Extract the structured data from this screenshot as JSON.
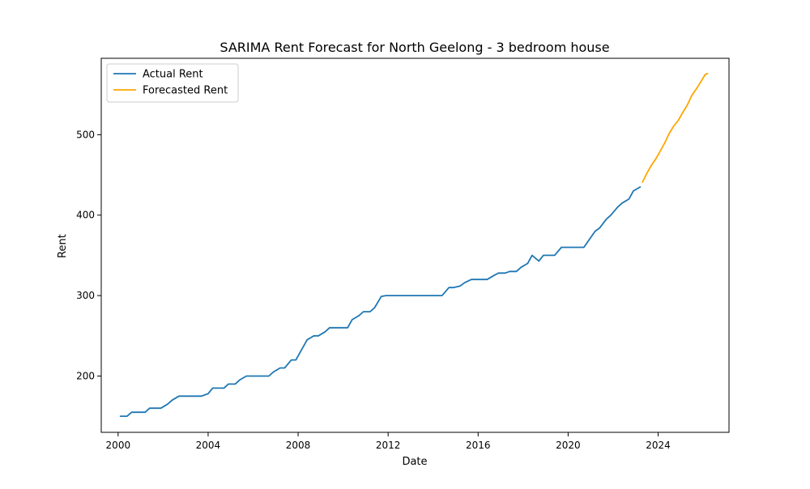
{
  "chart_data": {
    "type": "line",
    "title": "SARIMA Rent Forecast for North Geelong - 3 bedroom house",
    "xlabel": "Date",
    "ylabel": "Rent",
    "xlim": [
      1999.25,
      2027.15
    ],
    "ylim": [
      130,
      595
    ],
    "xticks": [
      2000,
      2004,
      2008,
      2012,
      2016,
      2020,
      2024
    ],
    "yticks": [
      200,
      300,
      400,
      500
    ],
    "grid": false,
    "legend_position": "top-left",
    "series": [
      {
        "name": "Actual Rent",
        "color": "#1f77b4",
        "points": [
          [
            2000.1,
            150
          ],
          [
            2000.4,
            150
          ],
          [
            2000.6,
            155
          ],
          [
            2000.9,
            155
          ],
          [
            2001.2,
            155
          ],
          [
            2001.4,
            160
          ],
          [
            2001.7,
            160
          ],
          [
            2001.9,
            160
          ],
          [
            2002.2,
            165
          ],
          [
            2002.4,
            170
          ],
          [
            2002.7,
            175
          ],
          [
            2002.9,
            175
          ],
          [
            2003.2,
            175
          ],
          [
            2003.4,
            175
          ],
          [
            2003.7,
            175
          ],
          [
            2004.0,
            178
          ],
          [
            2004.2,
            185
          ],
          [
            2004.4,
            185
          ],
          [
            2004.7,
            185
          ],
          [
            2004.9,
            190
          ],
          [
            2005.2,
            190
          ],
          [
            2005.4,
            195
          ],
          [
            2005.7,
            200
          ],
          [
            2005.9,
            200
          ],
          [
            2006.2,
            200
          ],
          [
            2006.4,
            200
          ],
          [
            2006.7,
            200
          ],
          [
            2006.9,
            205
          ],
          [
            2007.2,
            210
          ],
          [
            2007.4,
            210
          ],
          [
            2007.7,
            220
          ],
          [
            2007.9,
            220
          ],
          [
            2008.2,
            235
          ],
          [
            2008.4,
            245
          ],
          [
            2008.7,
            250
          ],
          [
            2008.9,
            250
          ],
          [
            2009.2,
            255
          ],
          [
            2009.4,
            260
          ],
          [
            2009.7,
            260
          ],
          [
            2009.9,
            260
          ],
          [
            2010.2,
            260
          ],
          [
            2010.4,
            270
          ],
          [
            2010.7,
            275
          ],
          [
            2010.9,
            280
          ],
          [
            2011.2,
            280
          ],
          [
            2011.4,
            285
          ],
          [
            2011.7,
            299
          ],
          [
            2011.9,
            300
          ],
          [
            2012.2,
            300
          ],
          [
            2012.4,
            300
          ],
          [
            2012.7,
            300
          ],
          [
            2012.9,
            300
          ],
          [
            2013.2,
            300
          ],
          [
            2013.4,
            300
          ],
          [
            2013.7,
            300
          ],
          [
            2013.9,
            300
          ],
          [
            2014.2,
            300
          ],
          [
            2014.4,
            300
          ],
          [
            2014.7,
            310
          ],
          [
            2014.9,
            310
          ],
          [
            2015.2,
            312
          ],
          [
            2015.4,
            316
          ],
          [
            2015.7,
            320
          ],
          [
            2015.9,
            320
          ],
          [
            2016.2,
            320
          ],
          [
            2016.4,
            320
          ],
          [
            2016.7,
            325
          ],
          [
            2016.9,
            328
          ],
          [
            2017.2,
            328
          ],
          [
            2017.4,
            330
          ],
          [
            2017.7,
            330
          ],
          [
            2017.9,
            335
          ],
          [
            2018.2,
            340
          ],
          [
            2018.4,
            350
          ],
          [
            2018.7,
            343
          ],
          [
            2018.9,
            350
          ],
          [
            2019.2,
            350
          ],
          [
            2019.4,
            350
          ],
          [
            2019.7,
            360
          ],
          [
            2019.9,
            360
          ],
          [
            2020.2,
            360
          ],
          [
            2020.4,
            360
          ],
          [
            2020.7,
            360
          ],
          [
            2020.9,
            368
          ],
          [
            2021.2,
            380
          ],
          [
            2021.4,
            384
          ],
          [
            2021.7,
            395
          ],
          [
            2021.9,
            400
          ],
          [
            2022.2,
            410
          ],
          [
            2022.4,
            415
          ],
          [
            2022.7,
            420
          ],
          [
            2022.9,
            430
          ],
          [
            2023.2,
            435
          ]
        ]
      },
      {
        "name": "Forecasted Rent",
        "color": "#ffa500",
        "points": [
          [
            2023.3,
            441
          ],
          [
            2023.5,
            452
          ],
          [
            2023.7,
            462
          ],
          [
            2023.9,
            470
          ],
          [
            2024.1,
            480
          ],
          [
            2024.3,
            490
          ],
          [
            2024.5,
            502
          ],
          [
            2024.7,
            511
          ],
          [
            2024.9,
            518
          ],
          [
            2025.1,
            528
          ],
          [
            2025.3,
            537
          ],
          [
            2025.5,
            549
          ],
          [
            2025.7,
            557
          ],
          [
            2025.9,
            566
          ],
          [
            2026.1,
            575
          ],
          [
            2026.2,
            576
          ]
        ]
      }
    ]
  }
}
